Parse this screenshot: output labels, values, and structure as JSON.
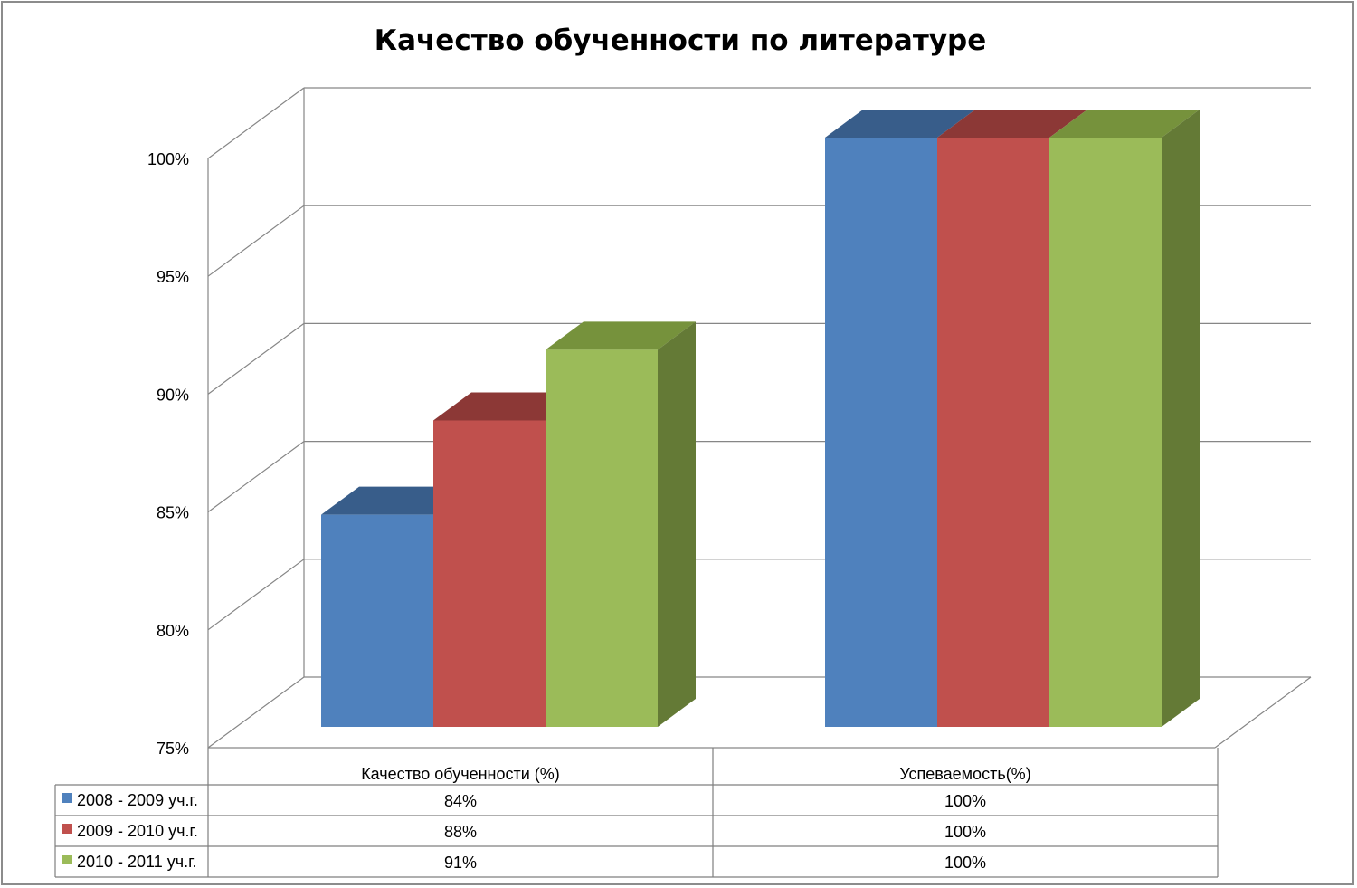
{
  "chart_data": {
    "type": "bar",
    "title": "Качество обученности по литературе",
    "categories": [
      "Качество обученности (%)",
      "Успеваемость(%)"
    ],
    "series": [
      {
        "name": "2008 - 2009 уч.г.",
        "values": [
          84,
          100
        ],
        "value_labels": [
          "84%",
          "100%"
        ]
      },
      {
        "name": "2009 - 2010 уч.г.",
        "values": [
          88,
          100
        ],
        "value_labels": [
          "88%",
          "100%"
        ]
      },
      {
        "name": "2010 - 2011 уч.г.",
        "values": [
          91,
          100
        ],
        "value_labels": [
          "91%",
          "100%"
        ]
      }
    ],
    "ylim": [
      75,
      100
    ],
    "yticks": [
      75,
      80,
      85,
      90,
      95,
      100
    ],
    "ytick_labels": [
      "75%",
      "80%",
      "85%",
      "90%",
      "95%",
      "100%"
    ],
    "grid": true,
    "legend": "data-table-bottom",
    "three_d": true
  },
  "colors": {
    "series": [
      "#4f81bd",
      "#c0504d",
      "#9bbb59"
    ],
    "series_top": [
      "#385d8a",
      "#8c3836",
      "#76923c"
    ],
    "series_side": [
      "#2f4f77",
      "#7a302e",
      "#647a36"
    ],
    "grid": "#868686"
  }
}
